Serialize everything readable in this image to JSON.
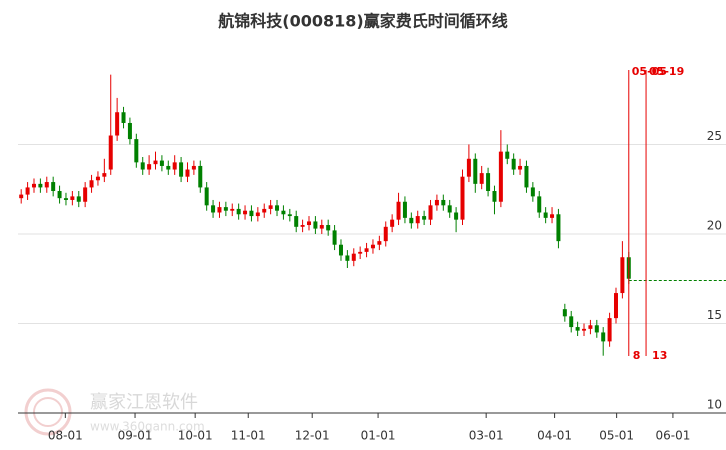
{
  "chart_data": {
    "type": "candlestick",
    "title": "航锦科技(000818)赢家费氏时间循环线",
    "watermark": [
      "赢家江恩软件",
      "www.360gann.com"
    ],
    "up_color": "#e60000",
    "down_color": "#008000",
    "open": [
      22.0,
      22.2,
      22.6,
      22.8,
      22.6,
      22.9,
      22.4,
      22.0,
      21.9,
      22.1,
      21.8,
      22.6,
      23.0,
      23.2,
      23.6,
      25.5,
      26.8,
      26.2,
      25.3,
      24.0,
      23.6,
      23.9,
      24.1,
      23.8,
      23.6,
      24.0,
      23.2,
      23.6,
      23.8,
      22.6,
      21.6,
      21.2,
      21.5,
      21.3,
      21.4,
      21.1,
      21.3,
      21.0,
      21.2,
      21.4,
      21.6,
      21.3,
      21.1,
      21.0,
      20.4,
      20.5,
      20.7,
      20.3,
      20.5,
      20.2,
      19.4,
      18.8,
      18.5,
      18.9,
      19.0,
      19.2,
      19.4,
      19.6,
      20.4,
      20.8,
      21.8,
      20.9,
      20.6,
      21.0,
      20.8,
      21.6,
      21.9,
      21.6,
      21.2,
      20.8,
      23.2,
      24.2,
      22.8,
      23.4,
      22.4,
      21.8,
      24.6,
      24.2,
      23.6,
      23.8,
      22.6,
      22.1,
      21.2,
      20.9,
      21.1,
      15.8,
      15.4,
      14.8,
      14.6,
      14.7,
      14.9,
      14.5,
      14.0,
      15.3,
      16.7,
      18.7
    ],
    "high": [
      22.5,
      22.9,
      23.1,
      23.1,
      23.2,
      23.2,
      22.7,
      22.3,
      22.4,
      22.4,
      22.9,
      23.3,
      23.5,
      24.2,
      28.9,
      27.6,
      27.1,
      26.5,
      25.6,
      24.3,
      24.4,
      24.6,
      24.4,
      24.1,
      24.4,
      24.3,
      24.0,
      24.1,
      24.1,
      22.9,
      21.9,
      21.8,
      21.8,
      21.7,
      21.7,
      21.6,
      21.6,
      21.5,
      21.7,
      21.9,
      21.9,
      21.6,
      21.4,
      21.3,
      20.8,
      21.0,
      21.0,
      20.8,
      20.8,
      20.5,
      19.7,
      19.1,
      19.2,
      19.3,
      19.5,
      19.7,
      19.9,
      20.7,
      21.1,
      22.3,
      22.1,
      21.2,
      21.3,
      21.3,
      21.9,
      22.2,
      22.2,
      21.9,
      21.5,
      23.6,
      25.0,
      24.5,
      23.8,
      23.7,
      22.7,
      25.8,
      25.0,
      24.5,
      24.2,
      24.1,
      22.9,
      22.4,
      21.5,
      21.5,
      21.4,
      16.1,
      15.7,
      15.1,
      15.0,
      15.2,
      15.2,
      14.8,
      15.6,
      17.0,
      19.6,
      19.0
    ],
    "low": [
      21.7,
      21.9,
      22.3,
      22.3,
      22.3,
      22.1,
      21.7,
      21.6,
      21.6,
      21.5,
      21.5,
      22.3,
      22.7,
      22.9,
      23.3,
      25.2,
      25.9,
      25.0,
      23.7,
      23.3,
      23.3,
      23.6,
      23.5,
      23.3,
      23.3,
      22.9,
      22.9,
      23.3,
      22.3,
      21.3,
      20.9,
      20.9,
      21.0,
      21.0,
      20.8,
      20.8,
      20.7,
      20.7,
      20.9,
      21.1,
      21.0,
      20.8,
      20.7,
      20.1,
      20.1,
      20.2,
      20.0,
      20.0,
      19.9,
      19.1,
      18.5,
      18.1,
      18.2,
      18.6,
      18.7,
      18.9,
      19.1,
      19.3,
      20.1,
      20.5,
      20.6,
      20.3,
      20.3,
      20.5,
      20.5,
      21.3,
      21.3,
      20.9,
      20.1,
      20.5,
      22.9,
      22.3,
      22.5,
      22.1,
      21.1,
      21.5,
      23.9,
      23.3,
      23.3,
      22.3,
      21.8,
      20.9,
      20.6,
      20.6,
      19.2,
      15.1,
      14.5,
      14.3,
      14.3,
      14.4,
      14.2,
      13.2,
      13.7,
      15.0,
      16.4,
      17.2
    ],
    "close": [
      22.2,
      22.6,
      22.8,
      22.6,
      22.9,
      22.4,
      22.0,
      21.9,
      22.1,
      21.8,
      22.6,
      23.0,
      23.2,
      23.4,
      25.5,
      26.8,
      26.2,
      25.3,
      24.0,
      23.6,
      23.9,
      24.1,
      23.8,
      23.6,
      24.0,
      23.2,
      23.6,
      23.8,
      22.6,
      21.6,
      21.2,
      21.5,
      21.3,
      21.4,
      21.1,
      21.3,
      21.0,
      21.2,
      21.4,
      21.6,
      21.3,
      21.1,
      21.0,
      20.4,
      20.5,
      20.7,
      20.3,
      20.5,
      20.2,
      19.4,
      18.8,
      18.5,
      18.9,
      19.0,
      19.2,
      19.4,
      19.6,
      20.4,
      20.8,
      21.8,
      20.9,
      20.6,
      21.0,
      20.8,
      21.6,
      21.9,
      21.6,
      21.2,
      20.8,
      23.2,
      24.2,
      22.8,
      23.4,
      22.4,
      21.8,
      24.6,
      24.2,
      23.6,
      23.8,
      22.6,
      22.1,
      21.2,
      20.9,
      21.1,
      19.6,
      15.4,
      14.8,
      14.6,
      14.7,
      14.9,
      14.5,
      14.0,
      15.3,
      16.7,
      18.7,
      17.5
    ],
    "xlim": [
      -0.5,
      110.2
    ],
    "xticks": [
      {
        "value": 6.9,
        "label": "08-01"
      },
      {
        "value": 17.8,
        "label": "09-01"
      },
      {
        "value": 27.2,
        "label": "10-01"
      },
      {
        "value": 35.5,
        "label": "11-01"
      },
      {
        "value": 45.5,
        "label": "12-01"
      },
      {
        "value": 55.8,
        "label": "01-01"
      },
      {
        "value": 72.7,
        "label": "03-01"
      },
      {
        "value": 83.4,
        "label": "04-01"
      },
      {
        "value": 93.1,
        "label": "05-01"
      },
      {
        "value": 101.9,
        "label": "06-01"
      }
    ],
    "ylim": [
      10,
      30.5
    ],
    "yticks": [
      10,
      15,
      20,
      25
    ],
    "grid": true,
    "cycle_lines": [
      {
        "x": 95.0,
        "top_label": "05-05",
        "bottom_label": "8"
      },
      {
        "x": 97.7,
        "top_label": "05-19",
        "bottom_label": "13"
      }
    ],
    "cycle_color": "#e60000",
    "level_line": {
      "value": 17.4,
      "from_x": 95.0,
      "color": "#008000"
    }
  }
}
